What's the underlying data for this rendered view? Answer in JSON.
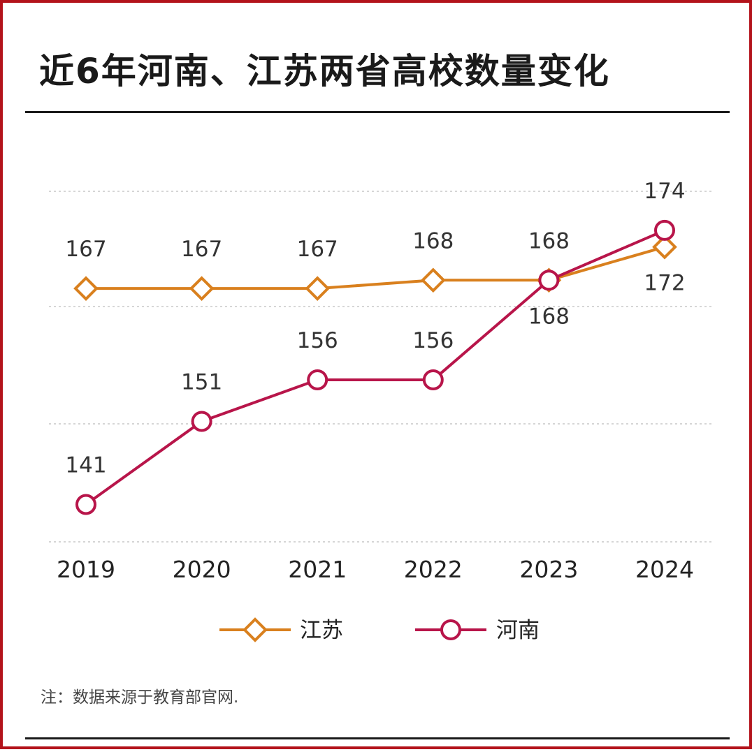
{
  "title": "近6年河南、江苏两省高校数量变化",
  "note": "注：数据来源于教育部官网.",
  "colors": {
    "jiangsu": "#d9801e",
    "henan": "#b8154a",
    "frame": "#b3131b",
    "grid": "#d6d6d6"
  },
  "chart_data": {
    "type": "line",
    "categories": [
      "2019",
      "2020",
      "2021",
      "2022",
      "2023",
      "2024"
    ],
    "series": [
      {
        "name": "江苏",
        "values": [
          167,
          167,
          167,
          168,
          168,
          172
        ],
        "marker": "diamond",
        "labels": [
          "167",
          "167",
          "167",
          "168",
          "168",
          "172"
        ]
      },
      {
        "name": "河南",
        "values": [
          141,
          151,
          156,
          156,
          168,
          174
        ],
        "marker": "circle",
        "labels": [
          "141",
          "151",
          "156",
          "156",
          "168",
          "174"
        ]
      }
    ],
    "title": "近6年河南、江苏两省高校数量变化",
    "xlabel": "",
    "ylabel": "",
    "ylim": [
      136.5,
      178.7
    ],
    "grid": true,
    "legend_position": "bottom"
  }
}
